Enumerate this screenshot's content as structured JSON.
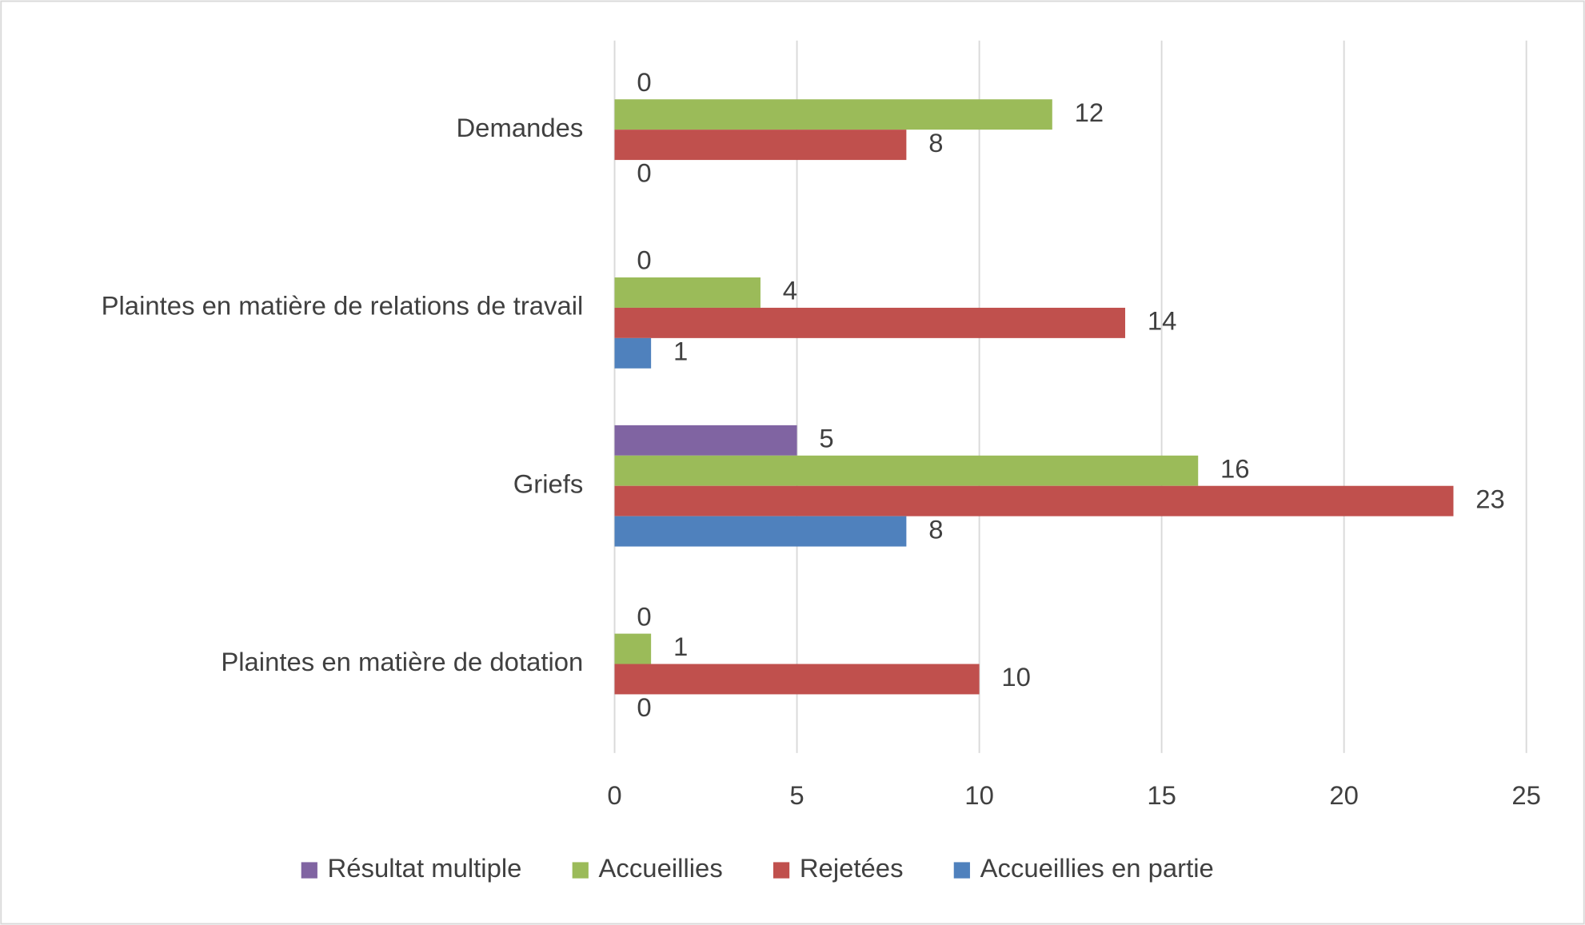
{
  "chart_data": {
    "type": "hbar",
    "categories": [
      "Demandes",
      "Plaintes en matière de relations de travail",
      "Griefs",
      "Plaintes en matière de dotation"
    ],
    "series": [
      {
        "name": "Résultat multiple",
        "color": "#8064a2",
        "values": [
          0,
          0,
          5,
          0
        ]
      },
      {
        "name": "Accueillies",
        "color": "#9bbb59",
        "values": [
          12,
          4,
          16,
          1
        ]
      },
      {
        "name": "Rejetées",
        "color": "#c0504d",
        "values": [
          8,
          14,
          23,
          10
        ]
      },
      {
        "name": "Accueillies en partie",
        "color": "#4f81bd",
        "values": [
          0,
          1,
          8,
          0
        ]
      }
    ],
    "xlim": [
      0,
      25
    ],
    "xticks": [
      0,
      5,
      10,
      15,
      20,
      25
    ],
    "grid": true,
    "legend": "bottom"
  }
}
